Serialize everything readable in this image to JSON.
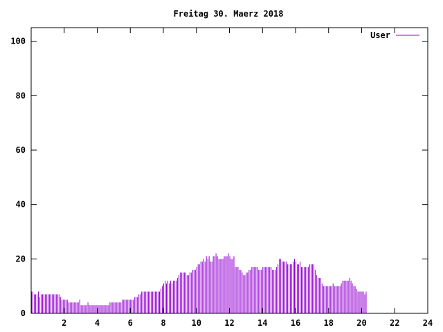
{
  "chart_data": {
    "type": "bar",
    "title": "Freitag 30. Maerz 2018",
    "xlabel": "",
    "ylabel": "",
    "xlim": [
      0,
      24
    ],
    "ylim": [
      0,
      105
    ],
    "x_ticks": [
      "2",
      "4",
      "6",
      "8",
      "10",
      "12",
      "14",
      "16",
      "18",
      "20",
      "22",
      "24"
    ],
    "y_ticks": [
      "0",
      "20",
      "40",
      "60",
      "80",
      "100"
    ],
    "grid": false,
    "legend_position": "top-right",
    "series": [
      {
        "name": "User",
        "color": "#9400d3",
        "sample_interval_minutes": 5,
        "values": [
          8,
          8,
          7,
          7,
          7,
          8,
          6,
          7,
          7,
          7,
          7,
          7,
          7,
          7,
          7,
          7,
          7,
          7,
          7,
          7,
          7,
          6,
          5,
          5,
          5,
          5,
          5,
          4,
          4,
          4,
          4,
          4,
          4,
          4,
          4,
          5,
          3,
          3,
          3,
          3,
          3,
          4,
          3,
          3,
          3,
          3,
          3,
          3,
          3,
          3,
          3,
          3,
          3,
          3,
          3,
          3,
          3,
          4,
          4,
          4,
          4,
          4,
          4,
          4,
          4,
          4,
          5,
          5,
          5,
          5,
          5,
          5,
          5,
          5,
          5,
          6,
          6,
          6,
          7,
          7,
          8,
          8,
          8,
          8,
          8,
          8,
          8,
          8,
          8,
          8,
          8,
          8,
          8,
          8,
          9,
          10,
          11,
          12,
          11,
          12,
          11,
          12,
          11,
          12,
          12,
          12,
          13,
          14,
          15,
          15,
          15,
          15,
          15,
          14,
          14,
          15,
          15,
          16,
          16,
          16,
          17,
          18,
          18,
          19,
          19,
          20,
          19,
          21,
          20,
          21,
          19,
          19,
          21,
          21,
          22,
          21,
          20,
          20,
          20,
          20,
          21,
          21,
          21,
          22,
          21,
          20,
          20,
          21,
          17,
          17,
          17,
          16,
          16,
          15,
          14,
          14,
          15,
          15,
          16,
          16,
          17,
          17,
          17,
          17,
          17,
          16,
          16,
          16,
          17,
          17,
          17,
          17,
          17,
          17,
          17,
          16,
          16,
          16,
          17,
          18,
          20,
          20,
          19,
          19,
          19,
          19,
          18,
          18,
          18,
          18,
          19,
          20,
          19,
          18,
          18,
          19,
          17,
          17,
          17,
          17,
          17,
          17,
          18,
          18,
          18,
          18,
          16,
          14,
          13,
          13,
          13,
          11,
          10,
          10,
          10,
          10,
          10,
          10,
          10,
          11,
          10,
          10,
          10,
          10,
          10,
          11,
          12,
          12,
          12,
          12,
          12,
          13,
          12,
          11,
          10,
          10,
          9,
          8,
          8,
          8,
          8,
          8,
          7,
          8
        ]
      }
    ]
  }
}
